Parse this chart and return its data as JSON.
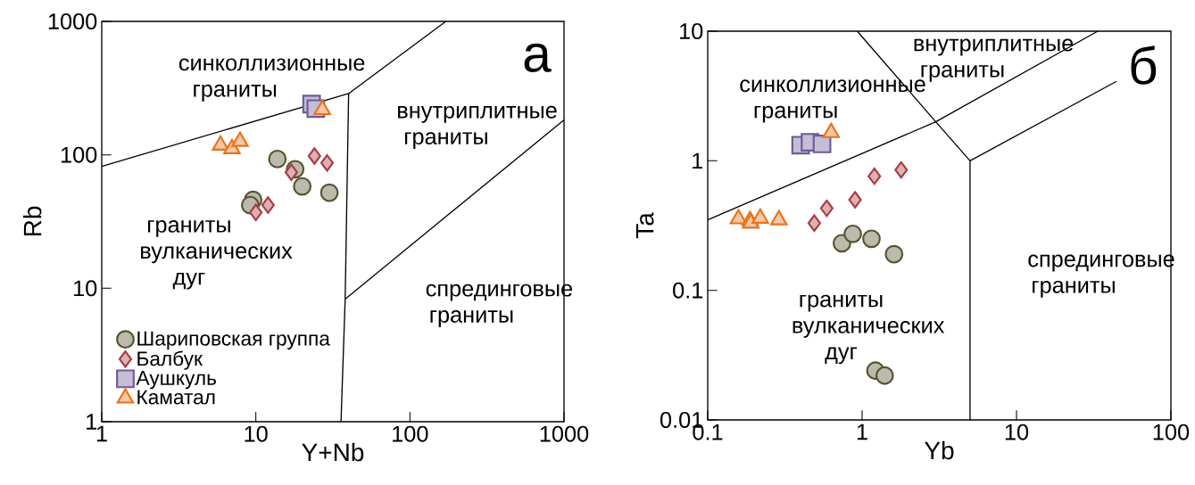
{
  "chart_data": [
    {
      "type": "scatter",
      "xlabel": "Y+Nb",
      "ylabel": "Rb",
      "log": "xy",
      "xlim": [
        1,
        1000
      ],
      "ylim": [
        1,
        1000
      ],
      "xticks": [
        1,
        10,
        100,
        1000
      ],
      "yticks": [
        1,
        10,
        100,
        1000
      ],
      "legend": "bottom left",
      "series": [
        {
          "name": "Шариповская группа",
          "color": "#55532f",
          "marker": "circle",
          "x": [
            13.8,
            18,
            20,
            30,
            9.6,
            9.2
          ],
          "values": [
            93,
            78,
            58,
            52,
            46,
            42
          ]
        },
        {
          "name": "Балбук",
          "color": "#a83c40",
          "marker": "diamond",
          "x": [
            17,
            24,
            29,
            12,
            10
          ],
          "values": [
            74,
            98,
            87,
            42,
            37
          ]
        },
        {
          "name": "Аушкуль",
          "color": "#6e5a96",
          "marker": "square",
          "x": [
            23,
            24.5
          ],
          "values": [
            240,
            222
          ]
        },
        {
          "name": "Каматал",
          "color": "#e8731c",
          "marker": "triangle",
          "x": [
            5.9,
            7,
            7.9,
            27
          ],
          "values": [
            118,
            111,
            126,
            218
          ]
        },
        {
          "type": "line",
          "color": "#000000",
          "marker": "none",
          "x": [
            1,
            40,
            171
          ],
          "values": [
            82,
            288,
            1000
          ]
        },
        {
          "type": "line",
          "color": "#000000",
          "marker": "none",
          "x": [
            40,
            38,
            35.7
          ],
          "values": [
            288,
            8.3,
            1
          ]
        },
        {
          "type": "line",
          "color": "#000000",
          "marker": "none",
          "x": [
            38,
            1000
          ],
          "values": [
            8.3,
            183
          ]
        }
      ],
      "annotations": [
        "синколлизионные граниты",
        "внутриплитные граниты",
        "граниты вулканических дуг",
        "спрединговые граниты",
        "а"
      ]
    },
    {
      "type": "scatter",
      "xlabel": "Yb",
      "ylabel": "Ta",
      "log": "xy",
      "xlim": [
        0.1,
        100
      ],
      "ylim": [
        0.01,
        10
      ],
      "xticks": [
        0.1,
        1,
        10,
        100
      ],
      "yticks": [
        0.01,
        0.1,
        1,
        10
      ],
      "series": [
        {
          "color": "#55532f",
          "marker": "circle",
          "x": [
            0.74,
            0.87,
            1.15,
            1.61,
            1.22,
            1.4
          ],
          "values": [
            0.231,
            0.273,
            0.25,
            0.19,
            0.024,
            0.022
          ]
        },
        {
          "color": "#a83c40",
          "marker": "diamond",
          "x": [
            0.49,
            0.59,
            0.9,
            1.2,
            1.79
          ],
          "values": [
            0.33,
            0.43,
            0.5,
            0.76,
            0.85
          ]
        },
        {
          "color": "#6e5a96",
          "marker": "square",
          "x": [
            0.4,
            0.46,
            0.55
          ],
          "values": [
            1.32,
            1.39,
            1.35
          ]
        },
        {
          "color": "#e8731c",
          "marker": "triangle",
          "x": [
            0.158,
            0.188,
            0.19,
            0.219,
            0.289,
            0.63
          ],
          "values": [
            0.356,
            0.345,
            0.33,
            0.36,
            0.35,
            1.65
          ]
        },
        {
          "type": "line",
          "color": "#000000",
          "marker": "none",
          "x": [
            0.1,
            3,
            33.6
          ],
          "values": [
            0.35,
            2,
            10
          ]
        },
        {
          "type": "line",
          "color": "#000000",
          "marker": "none",
          "x": [
            0.93,
            3,
            5
          ],
          "values": [
            10,
            2,
            1
          ]
        },
        {
          "type": "line",
          "color": "#000000",
          "marker": "none",
          "x": [
            5,
            5
          ],
          "values": [
            1,
            0.01
          ]
        },
        {
          "type": "line",
          "color": "#000000",
          "marker": "none",
          "x": [
            5,
            44.4
          ],
          "values": [
            1,
            4.1
          ]
        }
      ],
      "annotations": [
        "синколлизионные граниты",
        "внутриплитные граниты",
        "граниты вулканических дуг",
        "спрединговые граниты",
        "б"
      ]
    }
  ]
}
